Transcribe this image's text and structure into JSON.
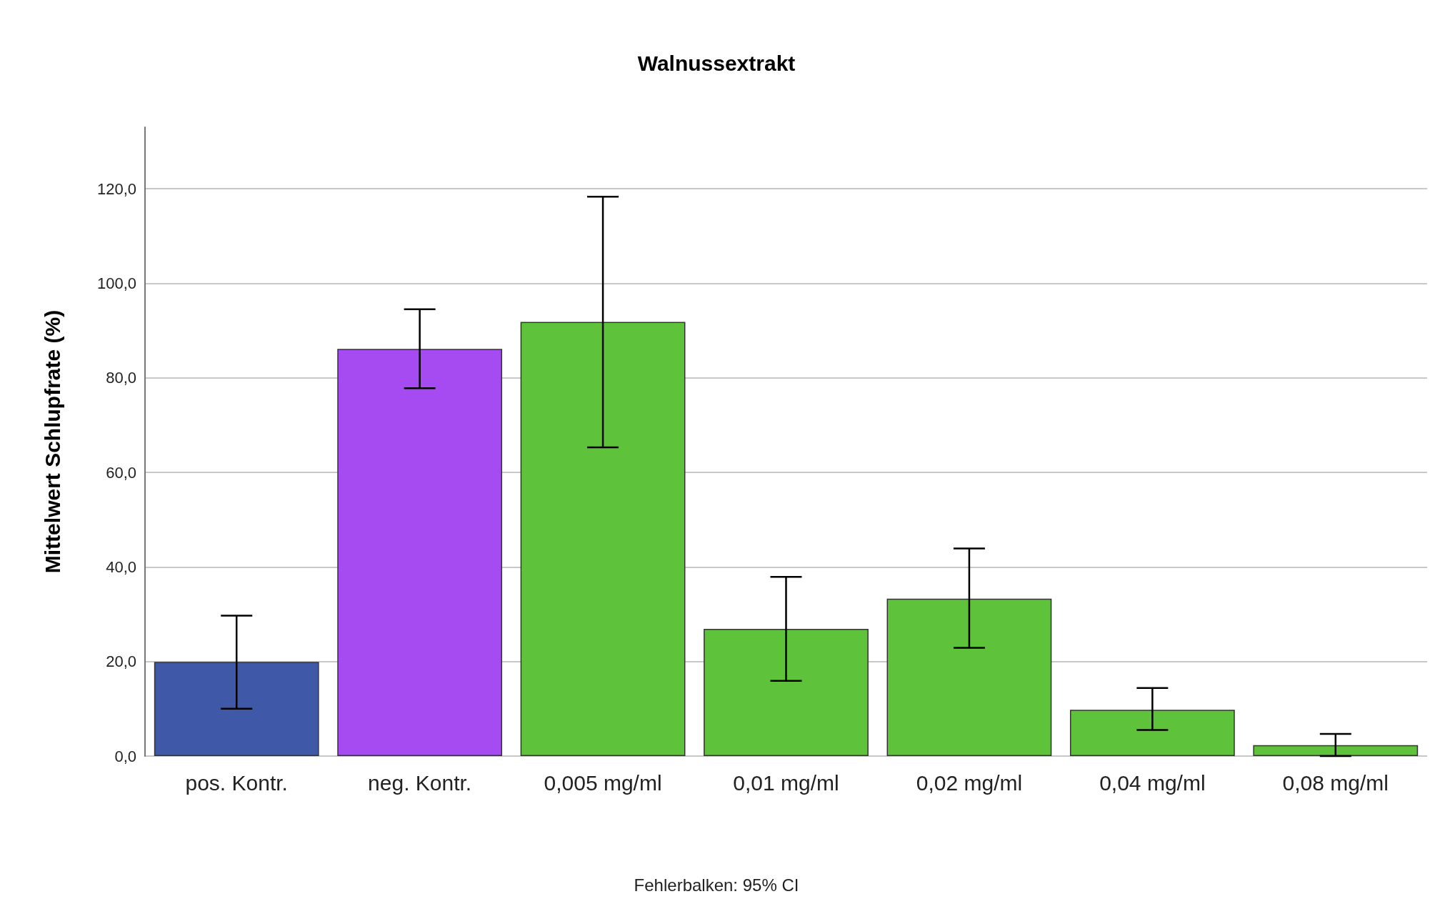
{
  "chart_data": {
    "type": "bar",
    "title": "Walnussextrakt",
    "ylabel": "Mittelwert Schlupfrate (%)",
    "categories": [
      "pos. Kontr.",
      "neg. Kontr.",
      "0,005 mg/ml",
      "0,01 mg/ml",
      "0,02 mg/ml",
      "0,04 mg/ml",
      "0,08 mg/ml"
    ],
    "values": [
      19.9,
      86.1,
      91.8,
      26.9,
      33.3,
      9.8,
      2.3
    ],
    "colors": [
      "#3f58a8",
      "#a64bf2",
      "#5ec23a",
      "#5ec23a",
      "#5ec23a",
      "#5ec23a",
      "#5ec23a"
    ],
    "errors": [
      [
        10.0,
        29.7
      ],
      [
        77.8,
        94.5
      ],
      [
        65.3,
        118.3
      ],
      [
        15.9,
        37.9
      ],
      [
        22.9,
        43.9
      ],
      [
        5.5,
        14.4
      ],
      [
        0,
        4.7
      ]
    ],
    "ylim": [
      0,
      133
    ],
    "yticks": [
      {
        "value": 0,
        "label": "0,0"
      },
      {
        "value": 20,
        "label": "20,0"
      },
      {
        "value": 40,
        "label": "40,0"
      },
      {
        "value": 60,
        "label": "60,0"
      },
      {
        "value": 80,
        "label": "80,0"
      },
      {
        "value": 100,
        "label": "100,0"
      },
      {
        "value": 120,
        "label": "120,0"
      }
    ],
    "grid": "y",
    "annotations": [
      "Fehlerbalken: 95% CI"
    ]
  }
}
